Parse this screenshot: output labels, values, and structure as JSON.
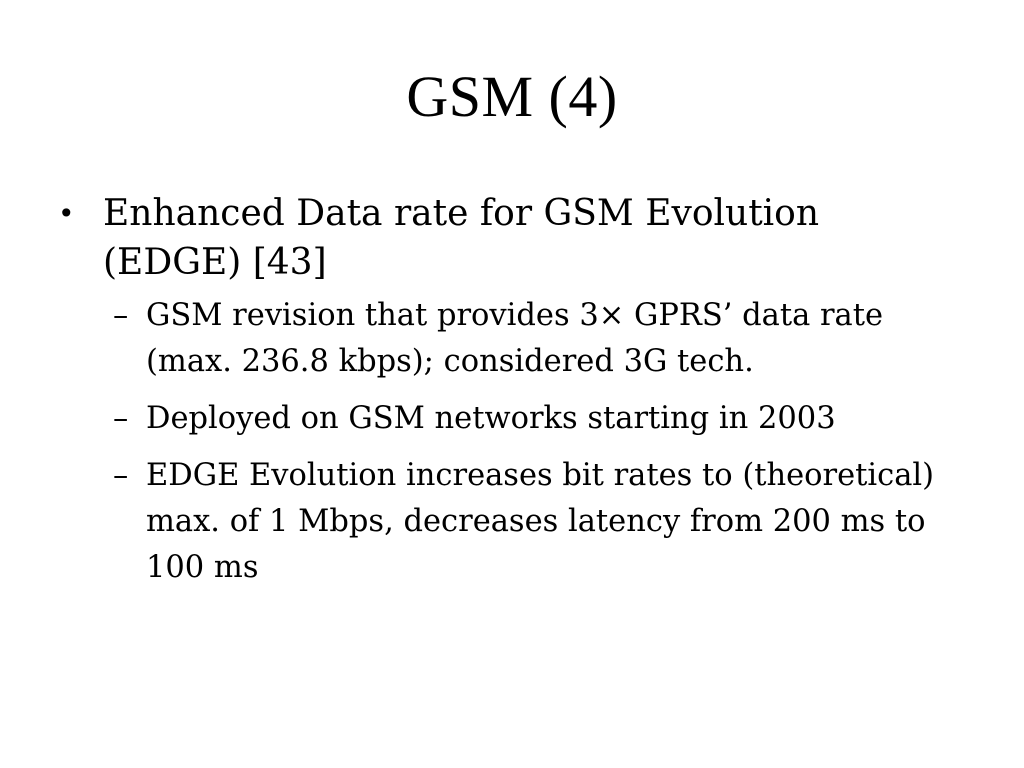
{
  "slide": {
    "title": "GSM (4)",
    "bullets": [
      {
        "marker": "•",
        "text": "Enhanced Data rate for GSM Evolution (EDGE) [43]",
        "sub": [
          {
            "marker": "–",
            "text": "GSM revision that provides 3× GPRS’ data rate (max. 236.8 kbps); considered 3G tech."
          },
          {
            "marker": "–",
            "text": "Deployed on GSM networks starting in 2003"
          },
          {
            "marker": "–",
            "text": "EDGE Evolution increases bit rates to (theoretical) max. of 1 Mbps, decreases latency from 200 ms to 100 ms"
          }
        ]
      }
    ]
  }
}
